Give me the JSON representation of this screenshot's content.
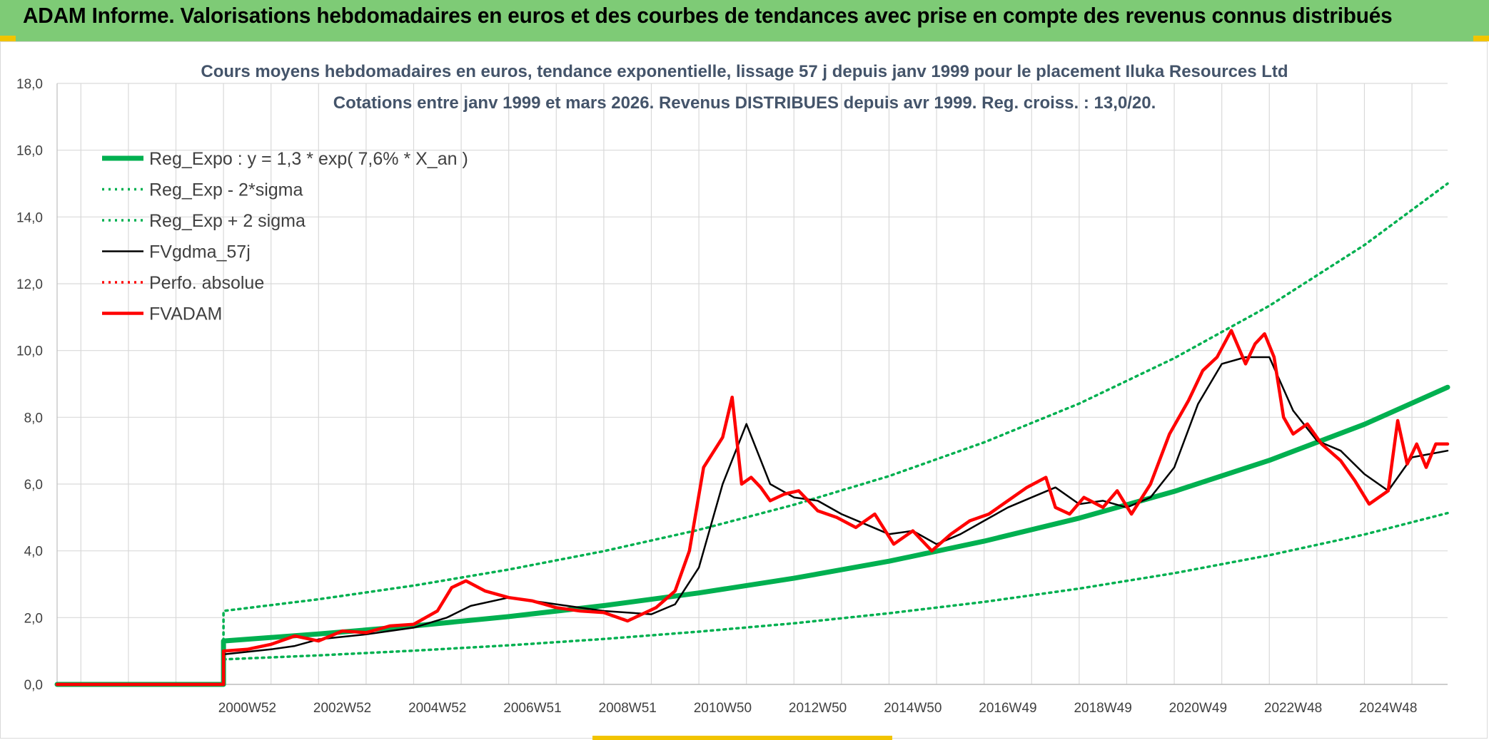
{
  "header": {
    "title": "ADAM Informe. Valorisations hebdomadaires en euros et des courbes de tendances avec prise en compte des revenus connus distribués"
  },
  "colors": {
    "header_bg": "#7ecb76",
    "trend_green": "#00b050",
    "fv_black": "#000000",
    "adam_red": "#ff0000",
    "grid": "#d9d9d9"
  },
  "chart_data": {
    "type": "line",
    "title_line1": "Cours moyens hebdomadaires en euros, tendance exponentielle, lissage 57 j depuis janv 1999 pour le placement Iluka Resources Ltd",
    "title_line2": "Cotations entre janv 1999 et mars 2026. Revenus DISTRIBUES depuis avr 1999. Reg. croiss. : 13,0/20.",
    "xlabel": "",
    "ylabel": "",
    "x_range": [
      1997.0,
      2026.25
    ],
    "ylim": [
      0,
      18
    ],
    "y_ticks": [
      "0,0",
      "2,0",
      "4,0",
      "6,0",
      "8,0",
      "10,0",
      "12,0",
      "14,0",
      "16,0",
      "18,0"
    ],
    "x_ticks": [
      {
        "label": "2000W52",
        "x": 2001.0
      },
      {
        "label": "2002W52",
        "x": 2003.0
      },
      {
        "label": "2004W52",
        "x": 2005.0
      },
      {
        "label": "2006W51",
        "x": 2007.0
      },
      {
        "label": "2008W51",
        "x": 2009.0
      },
      {
        "label": "2010W50",
        "x": 2011.0
      },
      {
        "label": "2012W50",
        "x": 2013.0
      },
      {
        "label": "2014W50",
        "x": 2015.0
      },
      {
        "label": "2016W49",
        "x": 2017.0
      },
      {
        "label": "2018W49",
        "x": 2019.0
      },
      {
        "label": "2020W49",
        "x": 2021.0
      },
      {
        "label": "2022W48",
        "x": 2023.0
      },
      {
        "label": "2024W48",
        "x": 2025.0
      }
    ],
    "grid": true,
    "legend_position": "top-left",
    "series": [
      {
        "name": "Reg_Expo : y = 1,3 * exp( 7,6% *  X_an )",
        "style": "thick-solid",
        "color": "#00b050",
        "x": [
          1997.0,
          2000.5,
          2000.5,
          2002.5,
          2004.5,
          2006.5,
          2008.5,
          2010.5,
          2012.5,
          2014.5,
          2016.5,
          2018.5,
          2020.5,
          2022.5,
          2024.5,
          2026.25
        ],
        "y": [
          0,
          0,
          1.3,
          1.51,
          1.75,
          2.03,
          2.36,
          2.74,
          3.18,
          3.69,
          4.29,
          4.98,
          5.78,
          6.71,
          7.79,
          8.9
        ]
      },
      {
        "name": "Reg_Exp - 2*sigma",
        "style": "dotted",
        "color": "#00b050",
        "x": [
          2000.5,
          2002.5,
          2004.5,
          2006.5,
          2008.5,
          2010.5,
          2012.5,
          2014.5,
          2016.5,
          2018.5,
          2020.5,
          2022.5,
          2024.5,
          2026.25
        ],
        "y": [
          0.75,
          0.87,
          1.01,
          1.17,
          1.36,
          1.58,
          1.83,
          2.13,
          2.47,
          2.87,
          3.33,
          3.87,
          4.49,
          5.13
        ]
      },
      {
        "name": "Reg_Exp + 2 sigma",
        "style": "dotted",
        "color": "#00b050",
        "x": [
          2000.5,
          2000.5,
          2002.5,
          2004.5,
          2006.5,
          2008.5,
          2010.5,
          2012.5,
          2014.5,
          2016.5,
          2018.5,
          2020.5,
          2022.5,
          2024.5,
          2026.25
        ],
        "y": [
          1.3,
          2.2,
          2.55,
          2.96,
          3.44,
          3.99,
          4.63,
          5.38,
          6.24,
          7.25,
          8.41,
          9.77,
          11.34,
          13.16,
          15.0
        ]
      },
      {
        "name": "FVgdma_57j",
        "style": "solid",
        "color": "#000000",
        "x": [
          1997.0,
          2000.5,
          2000.5,
          2001.5,
          2002.0,
          2002.5,
          2003.5,
          2004.5,
          2005.2,
          2005.7,
          2006.5,
          2007.5,
          2008.5,
          2009.5,
          2010.0,
          2010.5,
          2011.0,
          2011.5,
          2012.0,
          2012.5,
          2013.0,
          2013.5,
          2014.0,
          2014.5,
          2015.0,
          2015.5,
          2016.0,
          2016.5,
          2017.0,
          2017.5,
          2018.0,
          2018.5,
          2019.0,
          2019.5,
          2020.0,
          2020.5,
          2021.0,
          2021.5,
          2022.0,
          2022.5,
          2023.0,
          2023.5,
          2024.0,
          2024.5,
          2025.0,
          2025.5,
          2026.25
        ],
        "y": [
          0,
          0,
          0.9,
          1.05,
          1.15,
          1.35,
          1.5,
          1.7,
          2.0,
          2.35,
          2.6,
          2.4,
          2.2,
          2.1,
          2.4,
          3.5,
          6.0,
          7.8,
          6.0,
          5.6,
          5.5,
          5.1,
          4.8,
          4.5,
          4.6,
          4.2,
          4.5,
          4.9,
          5.3,
          5.6,
          5.9,
          5.4,
          5.5,
          5.3,
          5.6,
          6.5,
          8.4,
          9.6,
          9.8,
          9.8,
          8.2,
          7.3,
          7.0,
          6.3,
          5.8,
          6.8,
          7.0
        ]
      },
      {
        "name": "Perfo. absolue",
        "style": "dotted",
        "color": "#ff0000",
        "x": [],
        "y": []
      },
      {
        "name": "FVADAM",
        "style": "thick-solid",
        "color": "#ff0000",
        "x": [
          1997.0,
          2000.5,
          2000.5,
          2001.0,
          2001.5,
          2002.0,
          2002.5,
          2003.0,
          2003.5,
          2004.0,
          2004.5,
          2005.0,
          2005.3,
          2005.6,
          2006.0,
          2006.5,
          2007.0,
          2007.5,
          2008.0,
          2008.5,
          2009.0,
          2009.3,
          2009.6,
          2010.0,
          2010.3,
          2010.6,
          2011.0,
          2011.2,
          2011.4,
          2011.6,
          2011.8,
          2012.0,
          2012.3,
          2012.6,
          2013.0,
          2013.4,
          2013.8,
          2014.2,
          2014.6,
          2015.0,
          2015.4,
          2015.8,
          2016.2,
          2016.6,
          2017.0,
          2017.4,
          2017.8,
          2018.0,
          2018.3,
          2018.6,
          2019.0,
          2019.3,
          2019.6,
          2020.0,
          2020.4,
          2020.8,
          2021.1,
          2021.4,
          2021.7,
          2022.0,
          2022.2,
          2022.4,
          2022.6,
          2022.8,
          2023.0,
          2023.3,
          2023.6,
          2024.0,
          2024.3,
          2024.6,
          2025.0,
          2025.2,
          2025.4,
          2025.6,
          2025.8,
          2026.0,
          2026.25
        ],
        "y": [
          0,
          0,
          1.0,
          1.05,
          1.2,
          1.45,
          1.3,
          1.6,
          1.55,
          1.75,
          1.8,
          2.2,
          2.9,
          3.1,
          2.8,
          2.6,
          2.5,
          2.3,
          2.2,
          2.15,
          1.9,
          2.1,
          2.3,
          2.8,
          4.0,
          6.5,
          7.4,
          8.6,
          6.0,
          6.2,
          5.9,
          5.5,
          5.7,
          5.8,
          5.2,
          5.0,
          4.7,
          5.1,
          4.2,
          4.6,
          4.0,
          4.5,
          4.9,
          5.1,
          5.5,
          5.9,
          6.2,
          5.3,
          5.1,
          5.6,
          5.3,
          5.8,
          5.1,
          6.0,
          7.5,
          8.5,
          9.4,
          9.8,
          10.6,
          9.6,
          10.2,
          10.5,
          9.8,
          8.0,
          7.5,
          7.8,
          7.2,
          6.7,
          6.1,
          5.4,
          5.8,
          7.9,
          6.6,
          7.2,
          6.5,
          7.2,
          7.2
        ]
      }
    ]
  }
}
